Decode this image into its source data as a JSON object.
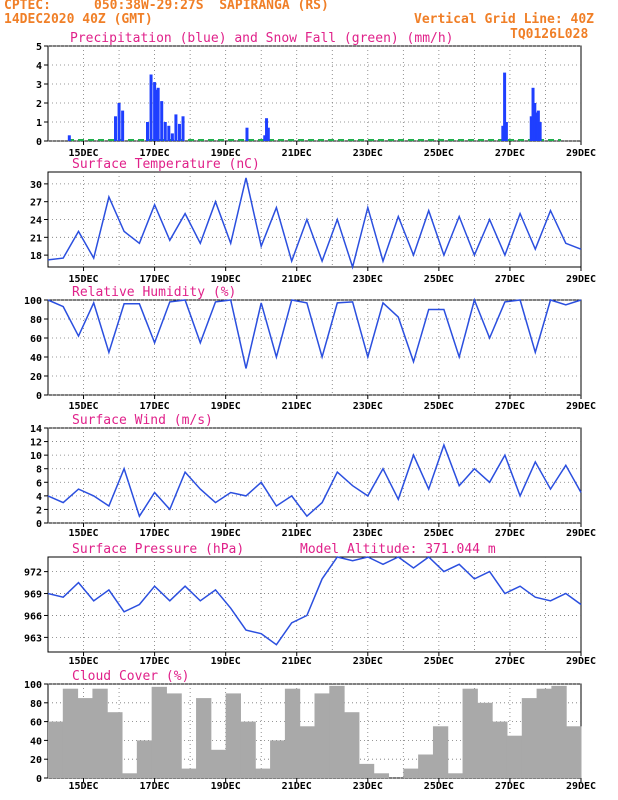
{
  "header": {
    "source": "CPTEC:",
    "location": "050:38W-29:27S  SAPIRANGA (RS)",
    "run": "14DEC2020 40Z (GMT)",
    "grid_note": "Vertical Grid Line: 40Z",
    "code": "TQ0126L028"
  },
  "colors": {
    "precip": "#1f3fff",
    "snow": "#1fae4b",
    "line": "#2b4fdf",
    "cloud": "#a9a9a9",
    "title": "#e0218a",
    "header": "#f07f27"
  },
  "chart_data": [
    {
      "type": "bar",
      "title": "Precipitation (blue) and Snow Fall (green) (mm/h)",
      "xticks": [
        "15DEC",
        "17DEC",
        "19DEC",
        "21DEC",
        "23DEC",
        "25DEC",
        "27DEC",
        "29DEC"
      ],
      "yticks": [
        "0",
        "1",
        "2",
        "3",
        "4",
        "5"
      ],
      "ylim": [
        0,
        5
      ],
      "x_days": [
        0.6,
        1.9,
        2.0,
        2.1,
        2.8,
        2.9,
        3.0,
        3.05,
        3.1,
        3.2,
        3.3,
        3.4,
        3.5,
        3.6,
        3.7,
        3.8,
        5.6,
        6.1,
        6.15,
        6.2,
        12.8,
        12.85,
        12.9,
        13.6,
        13.65,
        13.7,
        13.75,
        13.8,
        13.85
      ],
      "values": [
        0.3,
        1.3,
        2.0,
        1.6,
        1.0,
        3.5,
        3.1,
        2.7,
        2.8,
        2.1,
        1.0,
        0.8,
        0.4,
        1.4,
        0.9,
        1.3,
        0.7,
        0.3,
        1.2,
        0.7,
        0.8,
        3.6,
        1.0,
        1.3,
        2.8,
        2.0,
        1.5,
        1.6,
        1.0
      ]
    },
    {
      "type": "line",
      "title": "Surface Temperature (nC)",
      "xticks": [
        "15DEC",
        "17DEC",
        "19DEC",
        "21DEC",
        "23DEC",
        "25DEC",
        "27DEC",
        "29DEC"
      ],
      "yticks": [
        "18",
        "21",
        "24",
        "27",
        "30"
      ],
      "ylim": [
        16,
        32
      ],
      "values": [
        17.2,
        17.5,
        22.0,
        17.5,
        27.8,
        22.0,
        20.0,
        26.5,
        20.5,
        25.0,
        20.0,
        27.0,
        20.0,
        31.0,
        19.5,
        26.0,
        17.0,
        24.0,
        17.0,
        24.0,
        15.5,
        26.0,
        17.0,
        24.5,
        18.0,
        25.5,
        18.0,
        24.5,
        18.0,
        24.0,
        18.0,
        25.0,
        19.0,
        25.5,
        20.0,
        19.0
      ]
    },
    {
      "type": "line",
      "title": "Relative Humidity (%)",
      "xticks": [
        "15DEC",
        "17DEC",
        "19DEC",
        "21DEC",
        "23DEC",
        "25DEC",
        "27DEC",
        "29DEC"
      ],
      "yticks": [
        "0",
        "20",
        "40",
        "60",
        "80",
        "100"
      ],
      "ylim": [
        0,
        100
      ],
      "values": [
        100,
        93,
        62,
        97,
        45,
        96,
        96,
        55,
        98,
        100,
        55,
        98,
        100,
        28,
        97,
        40,
        100,
        97,
        40,
        97,
        98,
        40,
        97,
        82,
        35,
        90,
        90,
        40,
        100,
        60,
        98,
        100,
        45,
        100,
        95,
        100
      ]
    },
    {
      "type": "line",
      "title": "Surface Wind (m/s)",
      "xticks": [
        "15DEC",
        "17DEC",
        "19DEC",
        "21DEC",
        "23DEC",
        "25DEC",
        "27DEC",
        "29DEC"
      ],
      "yticks": [
        "0",
        "2",
        "4",
        "6",
        "8",
        "10",
        "12",
        "14"
      ],
      "ylim": [
        0,
        14
      ],
      "values": [
        4.0,
        3.0,
        5.0,
        4.0,
        2.5,
        8.0,
        1.0,
        4.5,
        2.0,
        7.5,
        5.0,
        3.0,
        4.5,
        4.0,
        6.0,
        2.5,
        4.0,
        1.0,
        3.0,
        7.5,
        5.5,
        4.0,
        8.0,
        3.5,
        10.0,
        5.0,
        11.5,
        5.5,
        8.0,
        6.0,
        10.0,
        4.0,
        9.0,
        5.0,
        8.5,
        4.5
      ]
    },
    {
      "type": "line",
      "title": "Surface Pressure (hPa)",
      "annotation": "Model Altitude: 371.044 m",
      "xticks": [
        "15DEC",
        "17DEC",
        "19DEC",
        "21DEC",
        "23DEC",
        "25DEC",
        "27DEC",
        "29DEC"
      ],
      "yticks": [
        "963",
        "966",
        "969",
        "972"
      ],
      "ylim": [
        961,
        974
      ],
      "values": [
        969,
        968.5,
        970.5,
        968,
        969.5,
        966.5,
        967.5,
        970,
        968,
        970,
        968,
        969.5,
        967,
        964,
        963.5,
        962,
        965,
        966,
        971,
        974,
        973.5,
        974,
        973,
        974,
        972.5,
        974,
        972,
        973,
        971,
        972,
        969,
        970,
        968.5,
        968,
        969,
        967.5
      ]
    },
    {
      "type": "area",
      "title": "Cloud Cover (%)",
      "xticks": [
        "15DEC",
        "17DEC",
        "19DEC",
        "21DEC",
        "23DEC",
        "25DEC",
        "27DEC",
        "29DEC"
      ],
      "yticks": [
        "0",
        "20",
        "40",
        "60",
        "80",
        "100"
      ],
      "ylim": [
        0,
        100
      ],
      "values": [
        60,
        95,
        85,
        95,
        70,
        5,
        40,
        97,
        90,
        10,
        85,
        30,
        90,
        60,
        10,
        40,
        95,
        55,
        90,
        98,
        70,
        15,
        5,
        0,
        10,
        25,
        55,
        5,
        95,
        80,
        60,
        45,
        85,
        95,
        98,
        55
      ]
    }
  ]
}
